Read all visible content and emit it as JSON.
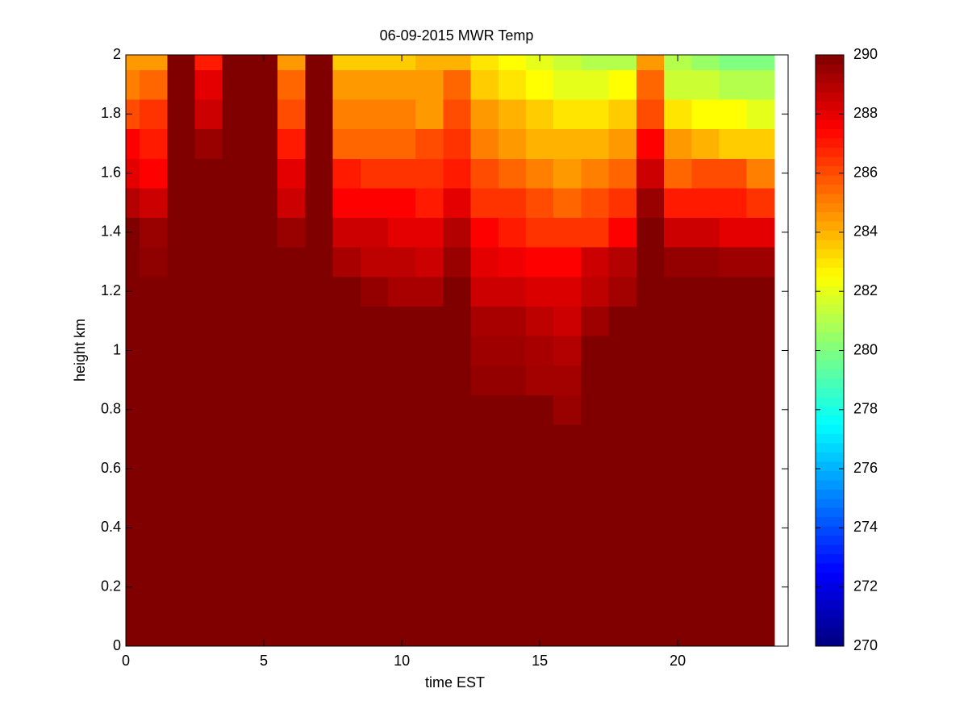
{
  "chart_data": {
    "type": "heatmap",
    "title": "06-09-2015 MWR Temp",
    "xlabel": "time EST",
    "ylabel": "height km",
    "colormap": "jet",
    "x": [
      0,
      1,
      2,
      3,
      4,
      5,
      6,
      7,
      8,
      9,
      10,
      11,
      12,
      13,
      14,
      15,
      16,
      17,
      18,
      19,
      20,
      21,
      22,
      23
    ],
    "y": [
      0,
      0.1,
      0.2,
      0.3,
      0.4,
      0.5,
      0.6,
      0.7,
      0.8,
      0.9,
      1,
      1.1,
      1.2,
      1.3,
      1.4,
      1.5,
      1.6,
      1.7,
      1.8,
      1.9,
      2
    ],
    "z": [
      [
        290,
        290,
        290,
        290,
        290,
        290,
        290,
        290,
        290,
        290,
        290,
        290,
        290,
        290,
        290,
        290,
        290,
        290,
        290,
        290,
        290,
        290,
        290,
        290
      ],
      [
        290,
        290,
        290,
        290,
        290,
        290,
        290,
        290,
        290,
        290,
        290,
        290,
        290,
        290,
        290,
        290,
        290,
        290,
        290,
        290,
        290,
        290,
        290,
        290
      ],
      [
        290,
        290,
        290,
        290,
        290,
        290,
        290,
        290,
        290,
        290,
        290,
        290,
        290,
        290,
        290,
        290,
        290,
        290,
        290,
        290,
        290,
        290,
        290,
        290
      ],
      [
        290,
        290,
        290,
        290,
        290,
        290,
        290,
        290,
        290,
        290,
        290,
        290,
        290,
        290,
        290,
        290,
        290,
        290,
        290,
        290,
        290,
        290,
        290,
        290
      ],
      [
        290,
        290,
        290,
        290,
        290,
        290,
        290,
        290,
        290,
        290,
        290,
        290,
        290,
        290,
        290,
        290,
        290,
        290,
        290,
        290,
        290,
        290,
        290,
        290
      ],
      [
        290,
        290,
        290,
        290,
        290,
        290,
        290,
        290,
        290,
        290,
        290,
        290,
        290,
        290,
        290,
        290,
        290,
        290,
        290,
        290,
        290,
        290,
        290,
        290
      ],
      [
        290,
        290,
        290,
        290,
        290,
        290,
        290,
        290,
        290,
        290,
        290,
        290,
        290,
        290,
        290,
        290,
        290,
        290,
        290,
        290,
        290,
        290,
        290,
        290
      ],
      [
        290,
        290,
        290,
        290,
        290,
        290,
        290,
        290,
        290,
        290,
        290,
        290,
        290,
        290,
        290,
        290,
        290,
        290,
        290,
        290,
        290,
        290,
        290,
        290
      ],
      [
        290,
        290,
        290,
        290,
        290,
        290,
        290,
        290,
        290,
        290,
        290,
        290,
        290,
        290,
        290,
        290,
        289.5,
        290,
        290,
        290,
        290,
        290,
        290,
        290
      ],
      [
        290,
        290,
        290,
        290,
        290,
        290,
        290,
        290,
        290,
        290,
        290,
        290,
        290,
        289.6,
        289.6,
        289.3,
        289.3,
        290,
        290,
        290,
        290,
        290,
        290,
        290
      ],
      [
        290,
        290,
        290,
        290,
        290,
        290,
        290,
        290,
        290,
        290,
        290,
        290,
        290,
        289.4,
        289.4,
        289.2,
        289,
        290,
        290,
        290,
        290,
        290,
        290,
        290
      ],
      [
        290,
        290,
        290,
        290,
        290,
        290,
        290,
        290,
        290,
        290,
        290,
        290,
        290,
        289.2,
        289.2,
        288.8,
        288.5,
        289.4,
        290,
        290,
        290,
        290,
        290,
        290
      ],
      [
        290,
        290,
        290,
        290,
        290,
        290,
        290,
        290,
        290,
        289.6,
        289.2,
        289.2,
        290,
        288.5,
        288.5,
        288.2,
        288.2,
        288.8,
        289.3,
        290,
        290,
        290,
        290,
        290
      ],
      [
        290,
        289.7,
        290,
        290,
        290,
        290,
        290,
        290,
        289.2,
        288.8,
        288.8,
        288.5,
        289.5,
        288,
        287.8,
        287.5,
        287.5,
        288.5,
        289,
        290,
        289.6,
        289.6,
        289.4,
        289.4
      ],
      [
        290,
        289.5,
        290,
        290,
        290,
        290,
        289.5,
        290,
        288.5,
        288.5,
        288,
        288,
        289,
        287.5,
        287,
        286.5,
        286.5,
        286.5,
        287.5,
        290,
        288.5,
        288.5,
        288,
        288
      ],
      [
        289,
        288.5,
        290,
        290,
        290,
        290,
        288.5,
        290,
        287.5,
        287.5,
        287.5,
        287,
        288,
        286.5,
        286.5,
        286,
        285.5,
        286,
        286.5,
        289.5,
        287,
        287,
        287,
        286.5
      ],
      [
        288,
        287.5,
        290,
        290,
        290,
        290,
        288,
        290,
        287,
        286.5,
        286.5,
        286.5,
        287,
        286,
        285.5,
        285,
        284.5,
        285,
        285.5,
        288.5,
        285.5,
        286,
        286,
        285
      ],
      [
        287.5,
        287,
        290,
        289.5,
        290,
        290,
        287,
        290,
        285.5,
        285.5,
        285.5,
        286,
        286.5,
        285,
        284.5,
        284,
        284,
        284,
        284.5,
        287.5,
        284.5,
        284,
        283.5,
        283.5
      ],
      [
        286,
        286.5,
        290,
        288.5,
        290,
        290,
        286,
        290,
        285,
        285,
        285,
        284.5,
        286,
        284.5,
        284,
        283.5,
        283,
        283,
        283.5,
        286,
        283,
        282.5,
        282.5,
        282
      ],
      [
        285,
        285.5,
        290,
        288,
        290,
        290,
        285.5,
        290,
        284.5,
        284.5,
        284.5,
        284.5,
        285.5,
        283.5,
        283,
        282.5,
        282,
        282,
        282.5,
        285.5,
        281.5,
        281.5,
        281,
        281
      ],
      [
        284.5,
        284.5,
        290,
        287,
        290,
        290,
        284.5,
        290,
        283.5,
        283.5,
        283.5,
        284,
        284,
        283,
        282.5,
        282,
        281.5,
        281,
        281,
        284.5,
        281,
        280.5,
        280,
        280
      ]
    ],
    "xlim": [
      0,
      24
    ],
    "ylim": [
      0,
      2
    ],
    "xticks": [
      0,
      5,
      10,
      15,
      20
    ],
    "yticks": [
      0,
      0.2,
      0.4,
      0.6,
      0.8,
      1,
      1.2,
      1.4,
      1.6,
      1.8,
      2
    ],
    "clim": [
      270,
      290
    ],
    "cticks": [
      270,
      272,
      274,
      276,
      278,
      280,
      282,
      284,
      286,
      288,
      290
    ]
  }
}
